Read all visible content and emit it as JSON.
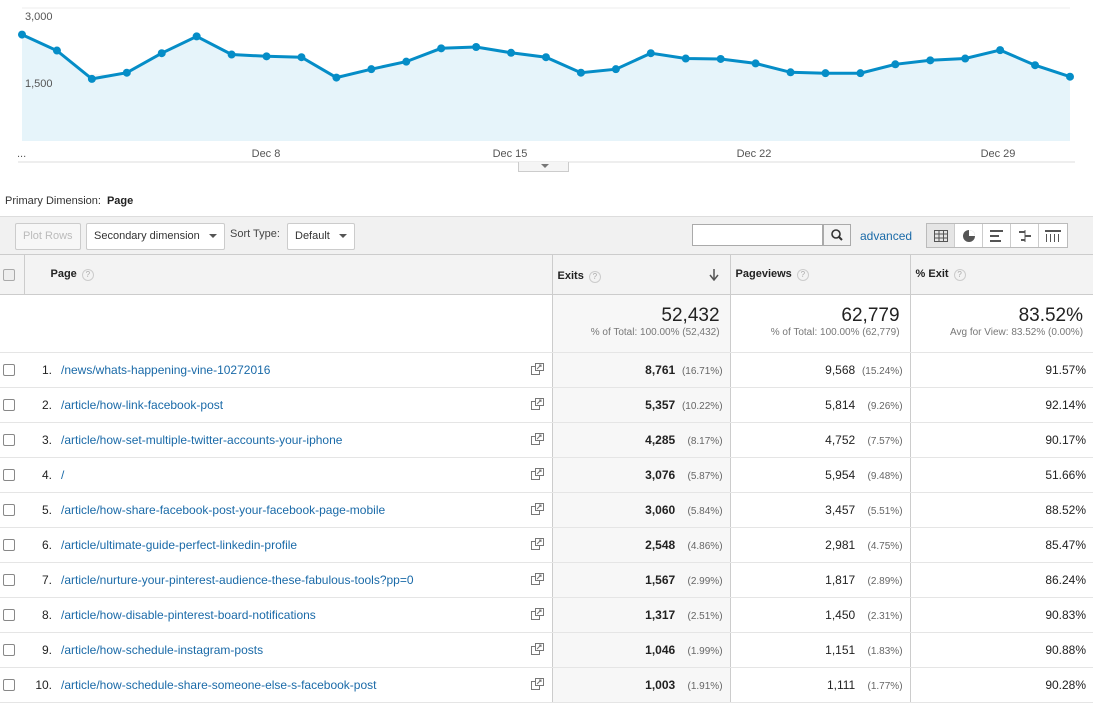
{
  "chart_data": {
    "type": "area",
    "title": "",
    "ylim": [
      0,
      3000
    ],
    "y_ticks": [
      "3,000",
      "1,500"
    ],
    "x_ticks": [
      "...",
      "Dec 8",
      "Dec 15",
      "Dec 22",
      "Dec 29"
    ],
    "values": [
      2400,
      2040,
      1400,
      1540,
      1980,
      2360,
      1950,
      1910,
      1890,
      1430,
      1620,
      1790,
      2090,
      2120,
      1990,
      1890,
      1540,
      1620,
      1980,
      1860,
      1850,
      1750,
      1550,
      1530,
      1530,
      1730,
      1820,
      1860,
      2050,
      1710,
      1450
    ],
    "line_color": "#058dc7",
    "fill_color": "#e6f4fa"
  },
  "primary_dimension": {
    "label": "Primary Dimension:",
    "value": "Page"
  },
  "toolbar": {
    "plot_rows": "Plot Rows",
    "secondary_dimension": "Secondary dimension",
    "sort_type_label": "Sort Type:",
    "sort_type_value": "Default",
    "search_placeholder": "",
    "advanced": "advanced"
  },
  "table": {
    "headers": {
      "page": "Page",
      "exits": "Exits",
      "pageviews": "Pageviews",
      "exit_pct": "% Exit"
    },
    "totals": {
      "exits": "52,432",
      "exits_sub": "% of Total: 100.00% (52,432)",
      "pageviews": "62,779",
      "pageviews_sub": "% of Total: 100.00% (62,779)",
      "exit_pct": "83.52%",
      "exit_pct_sub": "Avg for View: 83.52% (0.00%)"
    },
    "rows": [
      {
        "rank": "1.",
        "page": "/news/whats-happening-vine-10272016",
        "exits": "8,761",
        "exits_pct": "(16.71%)",
        "pageviews": "9,568",
        "pageviews_pct": "(15.24%)",
        "exit_pct": "91.57%"
      },
      {
        "rank": "2.",
        "page": "/article/how-link-facebook-post",
        "exits": "5,357",
        "exits_pct": "(10.22%)",
        "pageviews": "5,814",
        "pageviews_pct": "(9.26%)",
        "exit_pct": "92.14%"
      },
      {
        "rank": "3.",
        "page": "/article/how-set-multiple-twitter-accounts-your-iphone",
        "exits": "4,285",
        "exits_pct": "(8.17%)",
        "pageviews": "4,752",
        "pageviews_pct": "(7.57%)",
        "exit_pct": "90.17%"
      },
      {
        "rank": "4.",
        "page": "/",
        "exits": "3,076",
        "exits_pct": "(5.87%)",
        "pageviews": "5,954",
        "pageviews_pct": "(9.48%)",
        "exit_pct": "51.66%"
      },
      {
        "rank": "5.",
        "page": "/article/how-share-facebook-post-your-facebook-page-mobile",
        "exits": "3,060",
        "exits_pct": "(5.84%)",
        "pageviews": "3,457",
        "pageviews_pct": "(5.51%)",
        "exit_pct": "88.52%"
      },
      {
        "rank": "6.",
        "page": "/article/ultimate-guide-perfect-linkedin-profile",
        "exits": "2,548",
        "exits_pct": "(4.86%)",
        "pageviews": "2,981",
        "pageviews_pct": "(4.75%)",
        "exit_pct": "85.47%"
      },
      {
        "rank": "7.",
        "page": "/article/nurture-your-pinterest-audience-these-fabulous-tools?pp=0",
        "exits": "1,567",
        "exits_pct": "(2.99%)",
        "pageviews": "1,817",
        "pageviews_pct": "(2.89%)",
        "exit_pct": "86.24%"
      },
      {
        "rank": "8.",
        "page": "/article/how-disable-pinterest-board-notifications",
        "exits": "1,317",
        "exits_pct": "(2.51%)",
        "pageviews": "1,450",
        "pageviews_pct": "(2.31%)",
        "exit_pct": "90.83%"
      },
      {
        "rank": "9.",
        "page": "/article/how-schedule-instagram-posts",
        "exits": "1,046",
        "exits_pct": "(1.99%)",
        "pageviews": "1,151",
        "pageviews_pct": "(1.83%)",
        "exit_pct": "90.88%"
      },
      {
        "rank": "10.",
        "page": "/article/how-schedule-share-someone-else-s-facebook-post",
        "exits": "1,003",
        "exits_pct": "(1.91%)",
        "pageviews": "1,111",
        "pageviews_pct": "(1.77%)",
        "exit_pct": "90.28%"
      }
    ]
  }
}
